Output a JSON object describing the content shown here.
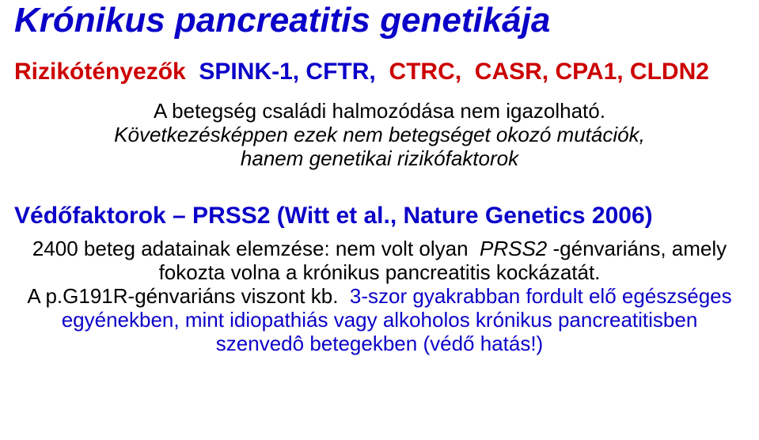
{
  "colors": {
    "blue": "#0b00c8",
    "red": "#cc0000",
    "black": "#000000",
    "blackText": "color:#000000",
    "blueText": "color:#0b00c8"
  },
  "title": {
    "part1": "Krónikus pancreatitis genetikája",
    "style1": "color:#0b00c8"
  },
  "riskFactors": {
    "label": "Rizikótényezők ",
    "labelStyle": "color:#cc0000",
    "g1": "SPINK-1, CFTR, ",
    "g1Style": "color:#0b00c8",
    "g2": "CTRC, ",
    "g2Style": "color:#cc0000",
    "g3": "CASR, CPA1, CLDN2",
    "g3Style": "color:#cc0000"
  },
  "p1": {
    "line1": "A betegség családi halmozódása nem igazolható.",
    "line2a": "Következésképpen ezek nem betegséget okozó mutációk,",
    "line3": "hanem genetikai rizikófaktorok"
  },
  "protective": {
    "text": "Védőfaktorok – PRSS2 (Witt et al., Nature Genetics 2006)",
    "style": "color:#0b00c8"
  },
  "p2": {
    "a": "2400 beteg adatainak elemzése: nem volt olyan ",
    "b": "PRSS2",
    "c": "-génvariáns, amely",
    "d": "fokozta volna a krónikus pancreatitis kockázatát.",
    "e": "A p.G191R-génvariáns viszont kb. ",
    "f": "3-szor gyakrabban fordult elő egészséges",
    "g": "egyénekben, mint idiopathiás vagy alkoholos krónikus pancreatitisben",
    "h": "szenvedô betegekben (védő hatás!)"
  }
}
